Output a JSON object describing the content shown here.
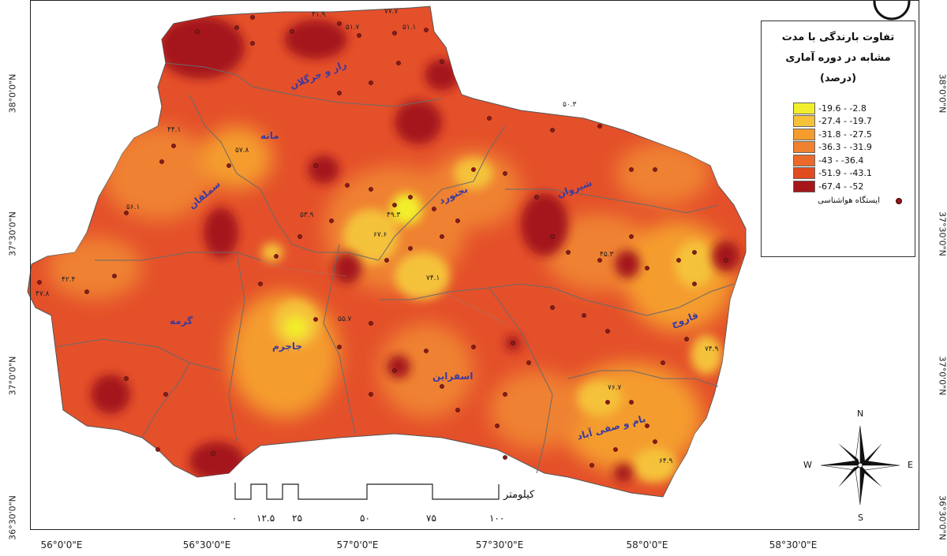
{
  "legend": {
    "title_line1": "تفاوت بارندگی با مدت",
    "title_line2": "مشابه در دوره آماری",
    "title_line3": "(درصد)",
    "classes": [
      {
        "label": "-19.6 - -2.8",
        "color": "#f2ee2b"
      },
      {
        "label": "-27.4 - -19.7",
        "color": "#f5c23a"
      },
      {
        "label": "-31.8 - -27.5",
        "color": "#f49c2e"
      },
      {
        "label": "-36.3 - -31.9",
        "color": "#ef8131"
      },
      {
        "label": "-43 - -36.4",
        "color": "#eb6a2a"
      },
      {
        "label": "-51.9 - -43.1",
        "color": "#e24a20"
      },
      {
        "label": "-67.4 - -52",
        "color": "#a5161a"
      }
    ],
    "station_label": "ایستگاه هواشناسی"
  },
  "axes": {
    "lat_left": [
      "38°0'0\"N",
      "37°30'0\"N",
      "37°0'0\"N",
      "36°30'0\"N"
    ],
    "lat_right": [
      "38°0'0\"N",
      "37°30'0\"N",
      "37°0'0\"N",
      "36°30'0\"N"
    ],
    "lon": [
      "56°0'0\"E",
      "56°30'0\"E",
      "57°0'0\"E",
      "57°30'0\"E",
      "58°0'0\"E",
      "58°30'0\"E"
    ]
  },
  "scale": {
    "unit": "کیلومتر",
    "ticks": [
      "۰",
      "۱۲.۵",
      "۲۵",
      "۵۰",
      "۷۵",
      "۱۰۰"
    ]
  },
  "compass": {
    "n": "N",
    "s": "S",
    "e": "E",
    "w": "W"
  },
  "counties": [
    {
      "name": "راز و جرگلان"
    },
    {
      "name": "مانه"
    },
    {
      "name": "سملقان"
    },
    {
      "name": "بجنورد"
    },
    {
      "name": "شیروان"
    },
    {
      "name": "جاجرم"
    },
    {
      "name": "گرمه"
    },
    {
      "name": "اسفراین"
    },
    {
      "name": "فاروج"
    },
    {
      "name": "بام و صفی آباد"
    }
  ],
  "station_values": [
    "۴۱.۹",
    "۷۷.۷",
    "۵۱.۱",
    "۶۷.۶",
    "۵۷.۸",
    "۵۳.۹",
    "۷۴.۱",
    "۴۹.۳",
    "۷۶.۷",
    "۵۵.۷",
    "۴۵.۳",
    "۶۴.۹",
    "۷۴.۹",
    "۴۴.۱",
    "۵۶.۱",
    "۴۲.۴",
    "۴۷.۸",
    "۵۰.۳",
    "۵۱.۷"
  ]
}
